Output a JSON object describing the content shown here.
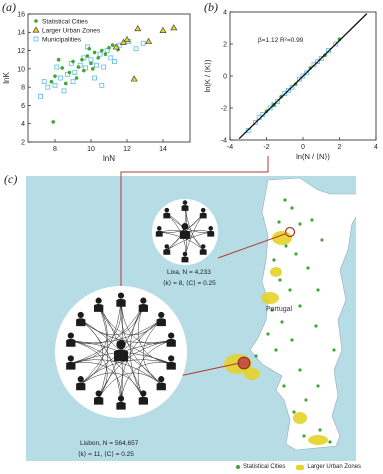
{
  "panels": {
    "a": {
      "label": "(a)"
    },
    "b": {
      "label": "(b)"
    },
    "c": {
      "label": "(c)"
    }
  },
  "colors": {
    "statistical_cities": "#3fa535",
    "larger_urban_zones": "#e6d228",
    "municipalities": "#8fd3ee",
    "sea": "#b6dce6",
    "land": "#ffffff",
    "connector": "#b03a2e"
  },
  "chart_data": [
    {
      "type": "scatter",
      "panel": "a",
      "xlabel": "lnN",
      "ylabel": "lnK",
      "xlim": [
        6.5,
        15.5
      ],
      "ylim": [
        2,
        16
      ],
      "x_ticks": [
        "8",
        "10",
        "12",
        "14"
      ],
      "y_ticks": [
        "2",
        "4",
        "6",
        "8",
        "10",
        "12",
        "14",
        "16"
      ],
      "legend_position": "top-left",
      "series": [
        {
          "name": "Statistical Cities",
          "marker": "circle",
          "points": [
            [
              8.0,
              9.2
            ],
            [
              8.4,
              10.1
            ],
            [
              8.8,
              9.6
            ],
            [
              9.0,
              10.8
            ],
            [
              9.3,
              10.2
            ],
            [
              9.5,
              11.0
            ],
            [
              9.8,
              11.4
            ],
            [
              10.0,
              10.6
            ],
            [
              10.2,
              11.8
            ],
            [
              10.4,
              11.2
            ],
            [
              10.6,
              12.0
            ],
            [
              10.8,
              11.6
            ],
            [
              11.0,
              12.3
            ],
            [
              11.2,
              12.6
            ],
            [
              11.5,
              12.1
            ],
            [
              7.8,
              8.6
            ],
            [
              8.6,
              8.4
            ],
            [
              9.2,
              9.0
            ],
            [
              8.2,
              11.0
            ],
            [
              9.6,
              9.8
            ],
            [
              10.1,
              10.0
            ],
            [
              9.9,
              12.2
            ],
            [
              7.9,
              4.2
            ]
          ]
        },
        {
          "name": "Larger Urban Zones",
          "marker": "triangle",
          "points": [
            [
              11.4,
              12.4
            ],
            [
              12.0,
              13.2
            ],
            [
              12.6,
              14.4
            ],
            [
              13.2,
              13.0
            ],
            [
              14.6,
              14.5
            ],
            [
              11.8,
              12.9
            ],
            [
              12.4,
              8.9
            ],
            [
              14.0,
              14.2
            ]
          ]
        },
        {
          "name": "Municipalities",
          "marker": "square",
          "points": [
            [
              7.2,
              7.0
            ],
            [
              7.6,
              8.0
            ],
            [
              8.0,
              8.2
            ],
            [
              8.3,
              9.0
            ],
            [
              8.7,
              9.4
            ],
            [
              9.1,
              9.6
            ],
            [
              9.4,
              10.4
            ],
            [
              9.7,
              10.1
            ],
            [
              10.0,
              11.0
            ],
            [
              10.3,
              10.4
            ],
            [
              10.5,
              11.6
            ],
            [
              10.9,
              12.0
            ],
            [
              11.1,
              11.2
            ],
            [
              11.6,
              12.6
            ],
            [
              12.1,
              13.0
            ],
            [
              12.5,
              12.2
            ],
            [
              12.9,
              12.8
            ],
            [
              8.1,
              10.2
            ],
            [
              8.5,
              7.6
            ],
            [
              9.0,
              8.6
            ],
            [
              9.6,
              11.2
            ],
            [
              10.2,
              9.0
            ],
            [
              10.7,
              10.2
            ],
            [
              11.3,
              10.8
            ],
            [
              8.9,
              10.6
            ],
            [
              7.4,
              8.6
            ],
            [
              9.8,
              12.4
            ],
            [
              10.6,
              8.2
            ]
          ]
        }
      ]
    },
    {
      "type": "scatter",
      "panel": "b",
      "xlabel": "ln(N / ⟨N⟩)",
      "ylabel": "ln(K / ⟨K⟩)",
      "annotation": "β=1.12  R²=0.99",
      "xlim": [
        -4,
        4
      ],
      "ylim": [
        -4,
        4
      ],
      "x_ticks": [
        "-4",
        "-2",
        "0",
        "2",
        "4"
      ],
      "y_ticks": [
        "-4",
        "-2",
        "0",
        "2",
        "4"
      ],
      "fit": {
        "slope": 1.12,
        "intercept": 0
      },
      "series": [
        {
          "name": "Municipalities",
          "marker": "square",
          "points": [
            [
              -2.6,
              -2.9
            ],
            [
              -2.2,
              -2.4
            ],
            [
              -1.8,
              -2.0
            ],
            [
              -1.4,
              -1.6
            ],
            [
              -1.0,
              -1.1
            ],
            [
              -0.6,
              -0.7
            ],
            [
              -0.2,
              -0.2
            ],
            [
              0.2,
              0.2
            ],
            [
              0.6,
              0.7
            ],
            [
              1.0,
              1.1
            ],
            [
              1.4,
              1.6
            ],
            [
              1.8,
              2.0
            ],
            [
              -2.4,
              -2.6
            ],
            [
              -1.6,
              -1.8
            ],
            [
              -0.8,
              -0.9
            ],
            [
              0.0,
              0.0
            ],
            [
              0.8,
              0.9
            ],
            [
              -3.0,
              -3.4
            ]
          ]
        },
        {
          "name": "Statistical Cities",
          "marker": "circle",
          "points": [
            [
              -2.0,
              -2.2
            ],
            [
              -1.2,
              -1.3
            ],
            [
              -0.4,
              -0.5
            ],
            [
              0.4,
              0.5
            ],
            [
              1.2,
              1.3
            ],
            [
              2.0,
              2.3
            ],
            [
              -1.6,
              -1.8
            ]
          ]
        }
      ]
    }
  ],
  "map": {
    "country_label": "Portugal",
    "lixa": {
      "name": "Lixa, N = 4,233",
      "stats": "⟨k⟩ = 8,  ⟨C⟩ = 0.25",
      "people_count": 8
    },
    "lisbon": {
      "name": "Lisbon, N = 564,657",
      "stats": "⟨k⟩ = 11,  ⟨C⟩ = 0.25",
      "people_count": 14
    }
  },
  "legend_bottom": {
    "statistical_cities": "Statistical Cities",
    "larger_urban_zones": "Larger Urban Zones"
  }
}
